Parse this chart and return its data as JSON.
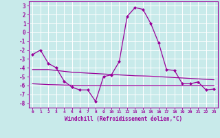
{
  "xlabel": "Windchill (Refroidissement éolien,°C)",
  "background_color": "#c8eaea",
  "grid_color": "#ffffff",
  "line_color": "#990099",
  "hours": [
    0,
    1,
    2,
    3,
    4,
    5,
    6,
    7,
    8,
    9,
    10,
    11,
    12,
    13,
    14,
    15,
    16,
    17,
    18,
    19,
    20,
    21,
    22,
    23
  ],
  "line1": [
    -2.5,
    -2.0,
    -3.5,
    -4.0,
    -5.5,
    -6.2,
    -6.5,
    -6.5,
    -7.8,
    -5.0,
    -4.8,
    -3.3,
    1.8,
    2.8,
    2.6,
    1.0,
    -1.2,
    -4.2,
    -4.3,
    -5.8,
    -5.8,
    -5.6,
    -6.5,
    -6.4
  ],
  "line2": [
    -4.2,
    -4.2,
    -4.2,
    -4.3,
    -4.4,
    -4.5,
    -4.55,
    -4.6,
    -4.65,
    -4.7,
    -4.75,
    -4.8,
    -4.85,
    -4.9,
    -4.92,
    -4.95,
    -5.0,
    -5.05,
    -5.1,
    -5.15,
    -5.2,
    -5.25,
    -5.3,
    -5.35
  ],
  "line3": [
    -5.8,
    -5.85,
    -5.9,
    -5.92,
    -5.95,
    -5.97,
    -6.0,
    -6.0,
    -6.0,
    -6.0,
    -6.0,
    -6.0,
    -6.0,
    -6.0,
    -6.0,
    -6.0,
    -6.0,
    -6.0,
    -6.0,
    -6.0,
    -6.0,
    -6.0,
    -6.0,
    -6.0
  ],
  "ylim": [
    -8.5,
    3.5
  ],
  "xlim": [
    -0.5,
    23.5
  ],
  "yticks": [
    3,
    2,
    1,
    0,
    -1,
    -2,
    -3,
    -4,
    -5,
    -6,
    -7,
    -8
  ],
  "xtick_labels": [
    "0",
    "1",
    "2",
    "3",
    "4",
    "5",
    "6",
    "7",
    "8",
    "9",
    "10",
    "11",
    "12",
    "13",
    "14",
    "15",
    "16",
    "17",
    "18",
    "19",
    "20",
    "21",
    "22",
    "23"
  ]
}
